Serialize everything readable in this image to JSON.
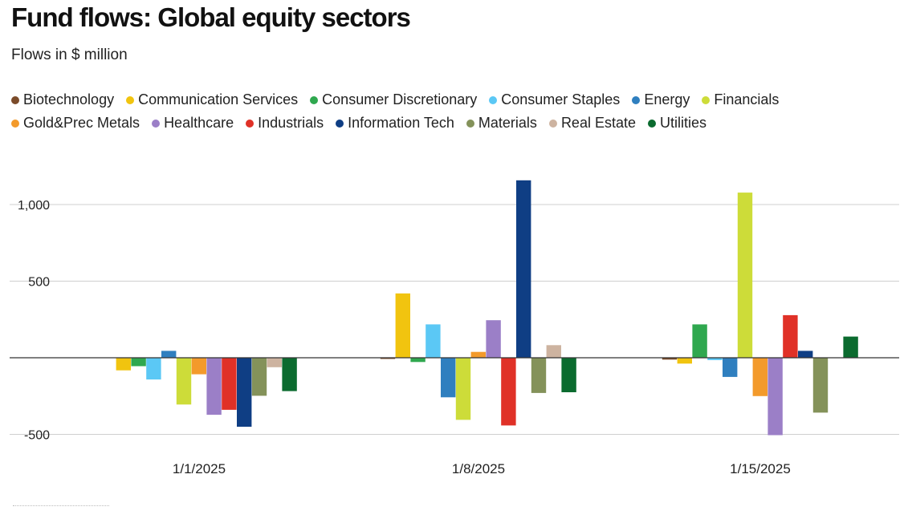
{
  "chart_data": {
    "type": "bar",
    "title": "Fund flows: Global equity sectors",
    "subtitle": "Flows in $ million",
    "xlabel": "",
    "ylabel": "",
    "ylim": [
      -500,
      1150
    ],
    "yticks": [
      {
        "value": 1000,
        "label": "1,000"
      },
      {
        "value": 500,
        "label": "500"
      },
      {
        "value": -500,
        "label": "-500"
      }
    ],
    "categories": [
      "1/1/2025",
      "1/8/2025",
      "1/15/2025"
    ],
    "series": [
      {
        "name": "Biotechnology",
        "color": "#7b4b2a",
        "values": [
          0,
          -8,
          -12
        ]
      },
      {
        "name": "Communication Services",
        "color": "#f1c40f",
        "values": [
          -82,
          420,
          -38
        ]
      },
      {
        "name": "Consumer Discretionary",
        "color": "#2fa84f",
        "values": [
          -55,
          -28,
          218
        ]
      },
      {
        "name": "Consumer Staples",
        "color": "#5bc8f5",
        "values": [
          -142,
          218,
          -15
        ]
      },
      {
        "name": "Energy",
        "color": "#2f7fbf",
        "values": [
          45,
          -258,
          -125
        ]
      },
      {
        "name": "Financials",
        "color": "#cddc39",
        "values": [
          -305,
          -405,
          1078
        ]
      },
      {
        "name": "Gold&Prec Metals",
        "color": "#f39a2b",
        "values": [
          -108,
          38,
          -250
        ]
      },
      {
        "name": "Healthcare",
        "color": "#9b7fc7",
        "values": [
          -372,
          245,
          -505
        ]
      },
      {
        "name": "Industrials",
        "color": "#e03127",
        "values": [
          -340,
          -442,
          278
        ]
      },
      {
        "name": "Information Tech",
        "color": "#0f3e84",
        "values": [
          -450,
          1158,
          45
        ]
      },
      {
        "name": "Materials",
        "color": "#84925a",
        "values": [
          -248,
          -230,
          -358
        ]
      },
      {
        "name": "Real Estate",
        "color": "#cdb3a0",
        "values": [
          -62,
          82,
          0
        ]
      },
      {
        "name": "Utilities",
        "color": "#0b6b2f",
        "values": [
          -218,
          -225,
          138
        ]
      }
    ],
    "legend_rows": [
      [
        0,
        1,
        2,
        3,
        4,
        5
      ],
      [
        6,
        7,
        8,
        9,
        10,
        11,
        12
      ]
    ]
  }
}
